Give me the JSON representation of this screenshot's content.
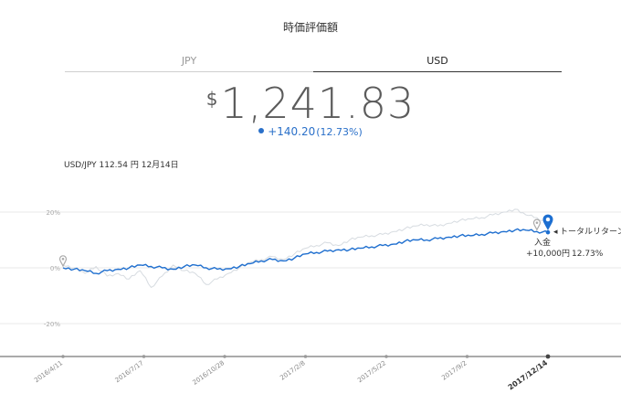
{
  "header": {
    "title": "時価評価額"
  },
  "tabs": [
    {
      "label": "JPY",
      "active": false
    },
    {
      "label": "USD",
      "active": true
    }
  ],
  "valuation": {
    "currency_symbol": "$",
    "amount": "1,241.83"
  },
  "change": {
    "value": "+140.20",
    "percent": "(12.73%)"
  },
  "exchange_rate": "USD/JPY 112.54 円 12月14日",
  "legend": {
    "total_return_label": "トータルリターン",
    "total_return_value": "12.73%",
    "deposit_label": "入金",
    "deposit_value": "+10,000円"
  },
  "colors": {
    "series_main": "#1f6fcf",
    "series_compare": "#d6dbe0",
    "marker": "#1d6fd1",
    "text_blue": "#2a70c9"
  },
  "icons": {
    "deposit_pin": "map-pin-outline-icon",
    "current_pin": "map-pin-icon",
    "current_dot": "dot-icon"
  },
  "chart_data": {
    "type": "line",
    "x_tick_labels": [
      "2016/4/11",
      "2016/7/17",
      "2016/10/28",
      "2017/2/8",
      "2017/5/22",
      "2017/9/2",
      "2017/12/14"
    ],
    "y_tick_labels": [
      "20%",
      "0%",
      "-20%"
    ],
    "ylim": [
      -30,
      30
    ],
    "grid": true,
    "series": [
      {
        "role": "portfolio",
        "values": [
          0,
          -0.5,
          -1,
          -2,
          -1,
          -0.5,
          0,
          1,
          0.5,
          0,
          -0.5,
          0.5,
          1,
          0,
          -0.5,
          -0.3,
          0.5,
          1.5,
          2.5,
          3,
          2.5,
          3.5,
          5,
          5.5,
          6,
          6.5,
          6.5,
          7,
          7.5,
          8,
          8.5,
          9.5,
          10,
          10,
          10.5,
          11,
          11.5,
          11.5,
          12,
          12.5,
          13,
          13.5,
          13.5,
          13,
          12.73
        ]
      },
      {
        "role": "comparison",
        "values": [
          1,
          0,
          -2,
          0.5,
          -3,
          -2,
          -4,
          -1,
          -7,
          -3,
          1,
          -1,
          -2,
          -6,
          -4,
          -2,
          0,
          2,
          3,
          4,
          3,
          5,
          7,
          8,
          9,
          8,
          10,
          11,
          11.5,
          12,
          13,
          14,
          15,
          15.5,
          15,
          16,
          17,
          17.5,
          18,
          19,
          20,
          21,
          19,
          18,
          16
        ]
      }
    ],
    "markers": [
      {
        "type": "deposit",
        "series_index": 0,
        "x_index": 0
      },
      {
        "type": "deposit",
        "series_index": 0,
        "x_index": 43
      },
      {
        "type": "current",
        "series_index": 0,
        "x_index": 44
      }
    ]
  }
}
